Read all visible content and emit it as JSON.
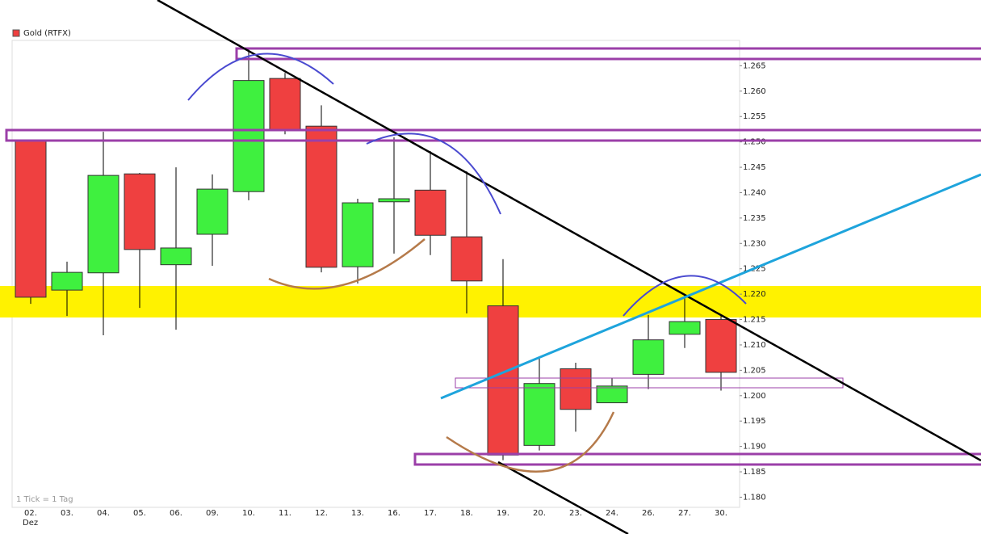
{
  "chart_data": {
    "type": "candlestick",
    "legend": "Gold (RTFX)",
    "annotations": [
      "1 Tick = 1 Tag",
      "Dez"
    ],
    "categories": [
      "02.",
      "03.",
      "04.",
      "05.",
      "06.",
      "09.",
      "10.",
      "11.",
      "12.",
      "13.",
      "16.",
      "17.",
      "18.",
      "19.",
      "20.",
      "23.",
      "24.",
      "26.",
      "27.",
      "30."
    ],
    "open": [
      1.2502,
      1.2208,
      1.2242,
      1.2437,
      1.2258,
      1.2318,
      1.2402,
      1.2625,
      1.2531,
      1.2254,
      1.2382,
      1.2405,
      1.2313,
      1.2177,
      1.1902,
      1.2053,
      1.1986,
      1.2042,
      1.2121,
      1.215
    ],
    "high": [
      1.2502,
      1.2264,
      1.252,
      1.2439,
      1.245,
      1.2436,
      1.2682,
      1.2636,
      1.2572,
      1.2388,
      1.2509,
      1.2482,
      1.2442,
      1.2269,
      1.2076,
      1.2065,
      1.2034,
      1.2159,
      1.22,
      1.2157
    ],
    "low": [
      1.2181,
      1.2157,
      1.2119,
      1.2173,
      1.213,
      1.2256,
      1.2385,
      1.2515,
      1.2243,
      1.2221,
      1.228,
      1.2277,
      1.2162,
      1.1873,
      1.1892,
      1.1929,
      1.1986,
      1.2013,
      1.2094,
      1.201
    ],
    "close": [
      1.2194,
      1.2243,
      1.2434,
      1.2288,
      1.2291,
      1.2407,
      1.2621,
      1.2524,
      1.2253,
      1.238,
      1.2388,
      1.2316,
      1.2226,
      1.1883,
      1.2024,
      1.1973,
      1.2019,
      1.211,
      1.2146,
      1.2046
    ],
    "up_color": "#3ff03f",
    "down_color": "#ef4040",
    "ylim": [
      1.178,
      1.27
    ],
    "yticks": [
      {
        "value": 1.18,
        "label": "1.180"
      },
      {
        "value": 1.185,
        "label": "1.185"
      },
      {
        "value": 1.19,
        "label": "1.190"
      },
      {
        "value": 1.195,
        "label": "1.195"
      },
      {
        "value": 1.2,
        "label": "1.200"
      },
      {
        "value": 1.205,
        "label": "1.205"
      },
      {
        "value": 1.21,
        "label": "1.210"
      },
      {
        "value": 1.215,
        "label": "1.215"
      },
      {
        "value": 1.22,
        "label": "1.220"
      },
      {
        "value": 1.225,
        "label": "1.225"
      },
      {
        "value": 1.23,
        "label": "1.230"
      },
      {
        "value": 1.235,
        "label": "1.235"
      },
      {
        "value": 1.24,
        "label": "1.240"
      },
      {
        "value": 1.245,
        "label": "1.245"
      },
      {
        "value": 1.25,
        "label": "1.250"
      },
      {
        "value": 1.255,
        "label": "1.255"
      },
      {
        "value": 1.26,
        "label": "1.260"
      },
      {
        "value": 1.265,
        "label": "1.265"
      }
    ]
  }
}
